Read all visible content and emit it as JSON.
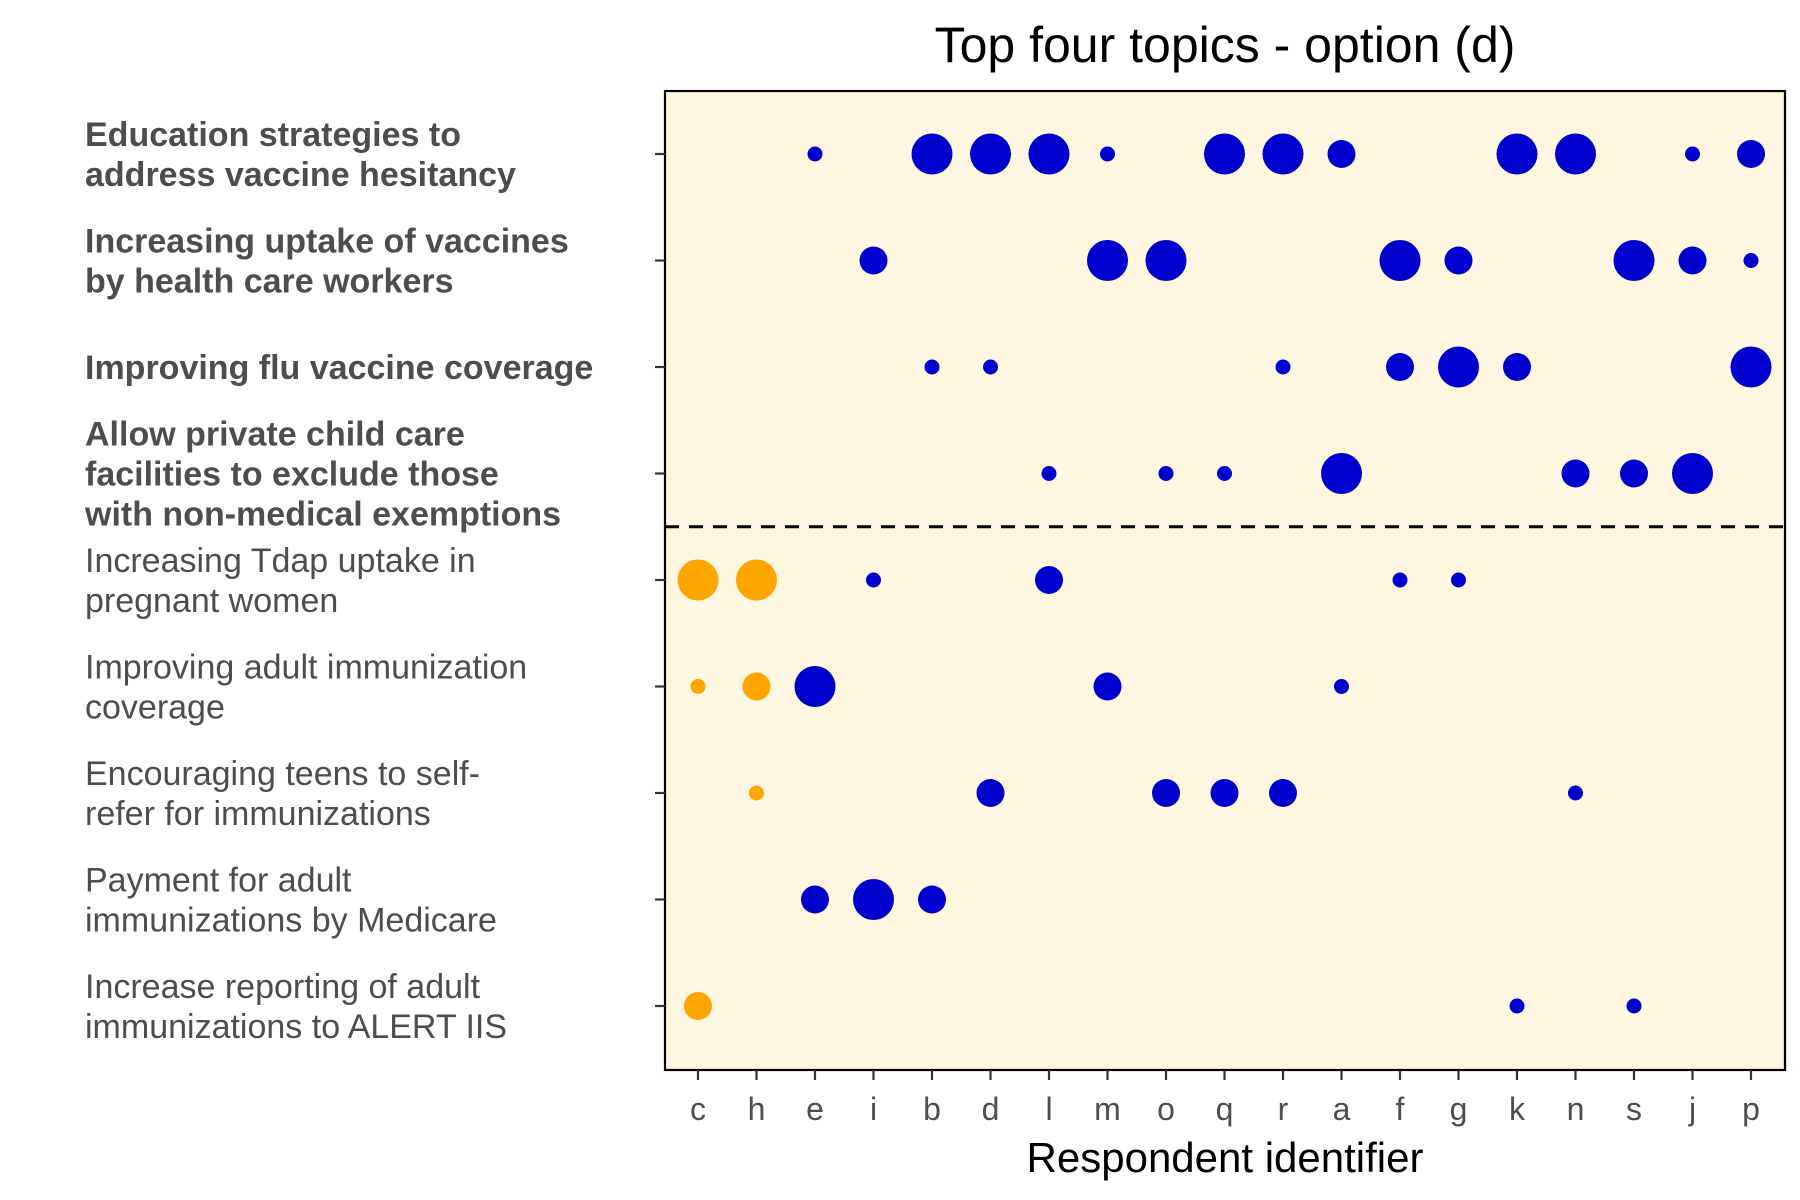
{
  "chart_data": {
    "type": "scatter",
    "title": "Top four topics - option (d)",
    "xlabel": "Respondent identifier",
    "ylabel": "",
    "background_color": "#fdf6e0",
    "colors": {
      "top_four": "#0000cd",
      "other": "#ffa500"
    },
    "x_categories": [
      "c",
      "h",
      "e",
      "i",
      "b",
      "d",
      "l",
      "m",
      "o",
      "q",
      "r",
      "a",
      "f",
      "g",
      "k",
      "n",
      "s",
      "j",
      "p"
    ],
    "topics": [
      {
        "lines": [
          "Education strategies to",
          "address vaccine hesitancy"
        ],
        "bold": true
      },
      {
        "lines": [
          "Increasing uptake of vaccines",
          "by health care workers"
        ],
        "bold": true
      },
      {
        "lines": [
          "Improving flu vaccine coverage"
        ],
        "bold": true
      },
      {
        "lines": [
          "Allow private child care",
          "facilities to exclude those",
          "with non-medical exemptions"
        ],
        "bold": true
      },
      {
        "lines": [
          "Increasing Tdap uptake in",
          "pregnant women"
        ],
        "bold": false
      },
      {
        "lines": [
          "Improving adult immunization",
          "coverage"
        ],
        "bold": false
      },
      {
        "lines": [
          "Encouraging teens to self-",
          "refer for immunizations"
        ],
        "bold": false
      },
      {
        "lines": [
          "Payment for adult",
          "immunizations by Medicare"
        ],
        "bold": false
      },
      {
        "lines": [
          "Increase reporting of adult",
          "immunizations to ALERT IIS"
        ],
        "bold": false
      }
    ],
    "divider_after_topic_index": 3,
    "points": [
      {
        "x": "e",
        "topic": 0,
        "rank": 1,
        "group": "top_four"
      },
      {
        "x": "b",
        "topic": 0,
        "rank": 4,
        "group": "top_four"
      },
      {
        "x": "d",
        "topic": 0,
        "rank": 4,
        "group": "top_four"
      },
      {
        "x": "l",
        "topic": 0,
        "rank": 4,
        "group": "top_four"
      },
      {
        "x": "m",
        "topic": 0,
        "rank": 1,
        "group": "top_four"
      },
      {
        "x": "q",
        "topic": 0,
        "rank": 4,
        "group": "top_four"
      },
      {
        "x": "r",
        "topic": 0,
        "rank": 4,
        "group": "top_four"
      },
      {
        "x": "a",
        "topic": 0,
        "rank": 2,
        "group": "top_four"
      },
      {
        "x": "k",
        "topic": 0,
        "rank": 4,
        "group": "top_four"
      },
      {
        "x": "n",
        "topic": 0,
        "rank": 4,
        "group": "top_four"
      },
      {
        "x": "j",
        "topic": 0,
        "rank": 1,
        "group": "top_four"
      },
      {
        "x": "p",
        "topic": 0,
        "rank": 2,
        "group": "top_four"
      },
      {
        "x": "i",
        "topic": 1,
        "rank": 2,
        "group": "top_four"
      },
      {
        "x": "m",
        "topic": 1,
        "rank": 4,
        "group": "top_four"
      },
      {
        "x": "o",
        "topic": 1,
        "rank": 4,
        "group": "top_four"
      },
      {
        "x": "f",
        "topic": 1,
        "rank": 4,
        "group": "top_four"
      },
      {
        "x": "g",
        "topic": 1,
        "rank": 2,
        "group": "top_four"
      },
      {
        "x": "s",
        "topic": 1,
        "rank": 4,
        "group": "top_four"
      },
      {
        "x": "j",
        "topic": 1,
        "rank": 2,
        "group": "top_four"
      },
      {
        "x": "p",
        "topic": 1,
        "rank": 1,
        "group": "top_four"
      },
      {
        "x": "b",
        "topic": 2,
        "rank": 1,
        "group": "top_four"
      },
      {
        "x": "d",
        "topic": 2,
        "rank": 1,
        "group": "top_four"
      },
      {
        "x": "r",
        "topic": 2,
        "rank": 1,
        "group": "top_four"
      },
      {
        "x": "f",
        "topic": 2,
        "rank": 2,
        "group": "top_four"
      },
      {
        "x": "g",
        "topic": 2,
        "rank": 4,
        "group": "top_four"
      },
      {
        "x": "k",
        "topic": 2,
        "rank": 2,
        "group": "top_four"
      },
      {
        "x": "p",
        "topic": 2,
        "rank": 4,
        "group": "top_four"
      },
      {
        "x": "l",
        "topic": 3,
        "rank": 1,
        "group": "top_four"
      },
      {
        "x": "o",
        "topic": 3,
        "rank": 1,
        "group": "top_four"
      },
      {
        "x": "q",
        "topic": 3,
        "rank": 1,
        "group": "top_four"
      },
      {
        "x": "a",
        "topic": 3,
        "rank": 4,
        "group": "top_four"
      },
      {
        "x": "n",
        "topic": 3,
        "rank": 2,
        "group": "top_four"
      },
      {
        "x": "s",
        "topic": 3,
        "rank": 2,
        "group": "top_four"
      },
      {
        "x": "j",
        "topic": 3,
        "rank": 4,
        "group": "top_four"
      },
      {
        "x": "c",
        "topic": 4,
        "rank": 4,
        "group": "other"
      },
      {
        "x": "h",
        "topic": 4,
        "rank": 4,
        "group": "other"
      },
      {
        "x": "i",
        "topic": 4,
        "rank": 1,
        "group": "top_four"
      },
      {
        "x": "l",
        "topic": 4,
        "rank": 2,
        "group": "top_four"
      },
      {
        "x": "f",
        "topic": 4,
        "rank": 1,
        "group": "top_four"
      },
      {
        "x": "g",
        "topic": 4,
        "rank": 1,
        "group": "top_four"
      },
      {
        "x": "c",
        "topic": 5,
        "rank": 1,
        "group": "other"
      },
      {
        "x": "h",
        "topic": 5,
        "rank": 2,
        "group": "other"
      },
      {
        "x": "e",
        "topic": 5,
        "rank": 4,
        "group": "top_four"
      },
      {
        "x": "m",
        "topic": 5,
        "rank": 2,
        "group": "top_four"
      },
      {
        "x": "a",
        "topic": 5,
        "rank": 1,
        "group": "top_four"
      },
      {
        "x": "h",
        "topic": 6,
        "rank": 1,
        "group": "other"
      },
      {
        "x": "d",
        "topic": 6,
        "rank": 2,
        "group": "top_four"
      },
      {
        "x": "o",
        "topic": 6,
        "rank": 2,
        "group": "top_four"
      },
      {
        "x": "q",
        "topic": 6,
        "rank": 2,
        "group": "top_four"
      },
      {
        "x": "r",
        "topic": 6,
        "rank": 2,
        "group": "top_four"
      },
      {
        "x": "n",
        "topic": 6,
        "rank": 1,
        "group": "top_four"
      },
      {
        "x": "e",
        "topic": 7,
        "rank": 2,
        "group": "top_four"
      },
      {
        "x": "i",
        "topic": 7,
        "rank": 4,
        "group": "top_four"
      },
      {
        "x": "b",
        "topic": 7,
        "rank": 2,
        "group": "top_four"
      },
      {
        "x": "c",
        "topic": 8,
        "rank": 2,
        "group": "other"
      },
      {
        "x": "k",
        "topic": 8,
        "rank": 1,
        "group": "top_four"
      },
      {
        "x": "s",
        "topic": 8,
        "rank": 1,
        "group": "top_four"
      }
    ],
    "grid": false,
    "legend": "none"
  }
}
